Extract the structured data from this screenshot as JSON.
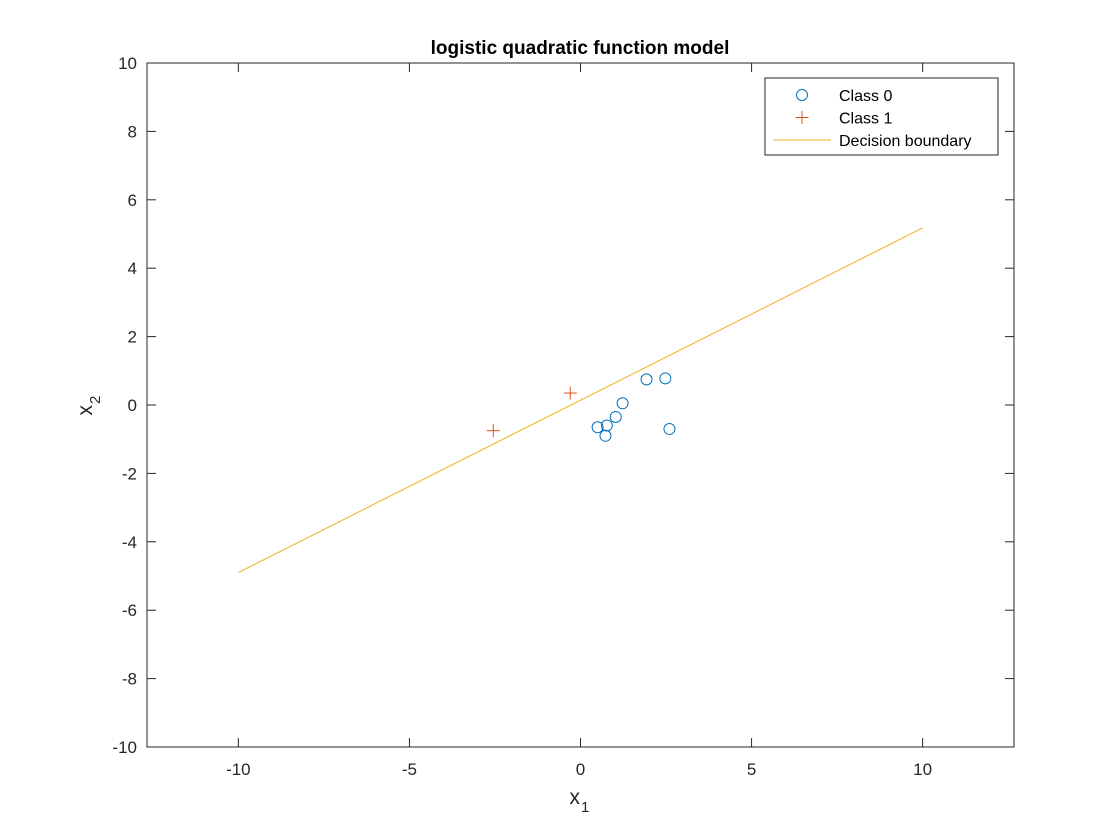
{
  "chart_data": {
    "type": "scatter",
    "title": "logistic quadratic function model",
    "xlabel": "x",
    "xlabel_sub": "1",
    "ylabel": "x",
    "ylabel_sub": "2",
    "xlim": [
      -12.67,
      12.67
    ],
    "ylim": [
      -10,
      10
    ],
    "xticks": [
      -10,
      -5,
      0,
      5,
      10
    ],
    "yticks": [
      -10,
      -8,
      -6,
      -4,
      -2,
      0,
      2,
      4,
      6,
      8,
      10
    ],
    "grid": false,
    "legend_position": "top-right",
    "series": [
      {
        "name": "Class 0",
        "marker": "circle",
        "color": "#0072bd",
        "points": [
          {
            "x": 0.5,
            "y": -0.65
          },
          {
            "x": 0.77,
            "y": -0.6
          },
          {
            "x": 0.73,
            "y": -0.9
          },
          {
            "x": 1.03,
            "y": -0.35
          },
          {
            "x": 1.23,
            "y": 0.05
          },
          {
            "x": 1.93,
            "y": 0.75
          },
          {
            "x": 2.48,
            "y": 0.78
          },
          {
            "x": 2.6,
            "y": -0.7
          }
        ]
      },
      {
        "name": "Class 1",
        "marker": "plus",
        "color": "#d95319",
        "points": [
          {
            "x": -2.55,
            "y": -0.75
          },
          {
            "x": -0.3,
            "y": 0.35
          }
        ]
      },
      {
        "name": "Decision boundary",
        "marker": "line",
        "color": "#edb120",
        "points": [
          {
            "x": -10,
            "y": -4.9
          },
          {
            "x": 10,
            "y": 5.18
          }
        ]
      }
    ]
  }
}
